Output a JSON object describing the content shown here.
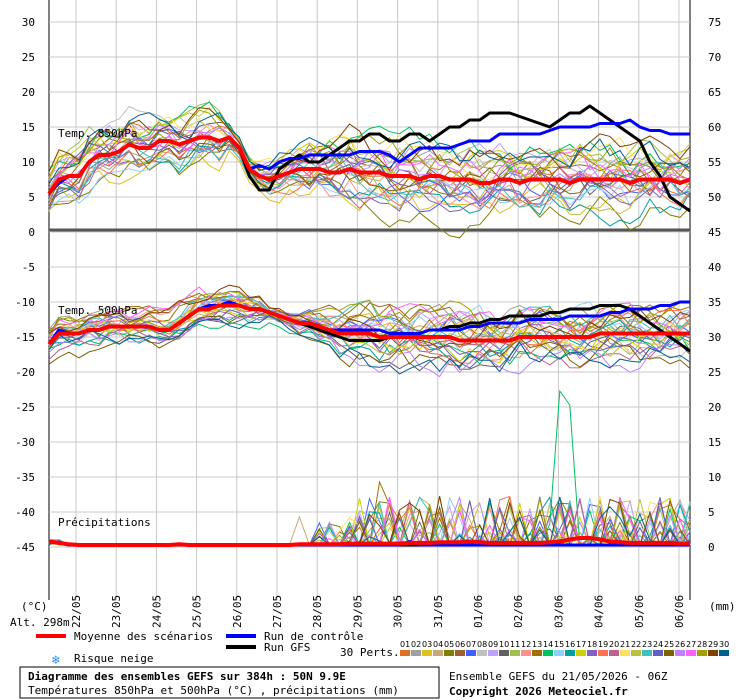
{
  "chart_data": {
    "type": "line",
    "title": "Diagramme des ensembles GEFS sur 384h : 50N 9.9E",
    "subtitle": "Températures 850hPa et 500hPa (°C) , précipitations (mm)",
    "run_info": "Ensemble GEFS du 21/05/2026 - 06Z",
    "copyright": "Copyright 2026 Meteociel.fr",
    "left_unit": "(°C)",
    "right_unit": "(mm)",
    "altitude": "Alt. 298m",
    "left_axis_ticks": [
      "30",
      "25",
      "20",
      "15",
      "10",
      "5",
      "0",
      "-5",
      "-10",
      "-15",
      "-20",
      "-25",
      "-30",
      "-35",
      "-40",
      "-45"
    ],
    "right_axis_ticks": [
      "75",
      "70",
      "65",
      "60",
      "55",
      "50",
      "45",
      "40",
      "35",
      "30",
      "25",
      "20",
      "15",
      "10",
      "5",
      "0"
    ],
    "x_tick_labels": [
      "22/05",
      "23/05",
      "24/05",
      "25/05",
      "26/05",
      "27/05",
      "28/05",
      "29/05",
      "30/05",
      "31/05",
      "01/06",
      "02/06",
      "03/06",
      "04/06",
      "05/06",
      "06/06"
    ],
    "panel_labels": {
      "t850": "Temp. 850hPa",
      "t500": "Temp. 500hPa",
      "precip": "Précipitations"
    },
    "legend": {
      "mean": "Moyenne des scénarios",
      "control": "Run de contrôle",
      "gfs": "Run GFS",
      "snow": "Risque neige",
      "perts": "30 Perts."
    },
    "perturbations": [
      "01",
      "02",
      "03",
      "04",
      "05",
      "06",
      "07",
      "08",
      "09",
      "10",
      "11",
      "12",
      "13",
      "14",
      "15",
      "16",
      "17",
      "18",
      "19",
      "20",
      "21",
      "22",
      "23",
      "24",
      "25",
      "26",
      "27",
      "28",
      "29",
      "30"
    ],
    "pert_colors": [
      "#e07020",
      "#a0a0a0",
      "#e0c020",
      "#c8a878",
      "#808000",
      "#a06030",
      "#4060ff",
      "#c0c0c0",
      "#c0a0ff",
      "#606060",
      "#a0c050",
      "#ff9090",
      "#a07000",
      "#00c060",
      "#90d0ff",
      "#00a0a0",
      "#d0d000",
      "#8060c0",
      "#ff7050",
      "#c06090",
      "#ffe060",
      "#c0c040",
      "#40c0c0",
      "#6060c0",
      "#806000",
      "#c080ff",
      "#ff60ff",
      "#a0a000",
      "#804000",
      "#006090"
    ],
    "colors": {
      "mean": "#ff0000",
      "control": "#0000ff",
      "gfs": "#000000"
    },
    "x_start_day": "21/05",
    "step_hours": 6,
    "series": [
      {
        "name": "Moyenne des scénarios",
        "panel": "t850",
        "values": [
          5.5,
          7.5,
          8,
          8,
          10,
          11,
          11,
          11.5,
          12.5,
          12,
          12,
          13,
          13,
          12.5,
          13,
          13.5,
          13.5,
          13,
          13.5,
          12,
          9,
          8,
          7.5,
          8,
          8.5,
          9,
          9,
          9,
          8.5,
          8.5,
          9,
          8.5,
          8.5,
          8.5,
          8,
          8,
          8,
          7.5,
          8,
          8,
          7.5,
          7.5,
          7.5,
          7,
          7,
          7.5,
          7.5,
          7,
          7.5,
          7.5,
          7.5,
          7.5,
          7,
          7.5,
          7.5,
          7.5,
          7.5,
          7.5,
          7,
          7.5,
          7.5,
          7.5,
          7.5,
          7,
          7.5
        ]
      },
      {
        "name": "Run de contrôle",
        "panel": "t850",
        "values": [
          5.5,
          7,
          8,
          8,
          10,
          11,
          11,
          11.5,
          12.5,
          12,
          12,
          13,
          13,
          12.5,
          13,
          13.5,
          13.5,
          13,
          13.5,
          12,
          9,
          9.5,
          9,
          10,
          10.5,
          10.5,
          11,
          11,
          11,
          11,
          11,
          11.5,
          11.5,
          11.5,
          11,
          10,
          11,
          12,
          12,
          12,
          12,
          12.5,
          13,
          13,
          13,
          14,
          14,
          14,
          14,
          14,
          14.5,
          15,
          15,
          15,
          15,
          15.5,
          15.5,
          15.5,
          16,
          15,
          14.5,
          14.5,
          14,
          14,
          14
        ]
      },
      {
        "name": "Run GFS",
        "panel": "t850",
        "values": [
          5.5,
          7,
          8,
          8,
          10,
          11,
          11,
          11.5,
          12.5,
          12,
          12,
          13,
          13,
          12.5,
          13,
          13.5,
          13.5,
          13,
          13.5,
          12,
          8,
          6,
          6,
          9,
          10,
          11,
          10,
          10,
          11,
          12,
          13,
          13,
          14,
          14,
          13,
          13,
          14,
          14,
          13,
          14,
          15,
          15,
          16,
          16,
          17,
          17,
          17,
          16.5,
          16,
          15.5,
          15,
          16,
          17,
          17,
          18,
          17,
          16,
          15,
          14,
          13,
          10,
          8,
          5,
          4,
          3
        ]
      },
      {
        "name": "Moyenne des scénarios",
        "panel": "t500",
        "values": [
          -16,
          -14.5,
          -14.5,
          -14.5,
          -14,
          -14,
          -13.5,
          -13.5,
          -13.5,
          -13.5,
          -13.5,
          -14,
          -14,
          -13,
          -12,
          -11,
          -11,
          -10.5,
          -10.5,
          -10.5,
          -11,
          -11,
          -11.5,
          -12,
          -12.5,
          -13,
          -13,
          -13.5,
          -14,
          -14.5,
          -14.5,
          -14.5,
          -14.5,
          -15,
          -15,
          -15,
          -15,
          -15,
          -15,
          -15,
          -15,
          -15.5,
          -15.5,
          -15.5,
          -15.5,
          -15.5,
          -15.5,
          -15,
          -15,
          -15,
          -15,
          -15,
          -15,
          -15,
          -15,
          -14.5,
          -14.5,
          -14.5,
          -14.5,
          -14.5,
          -14.5,
          -14.5,
          -14.5,
          -14.5,
          -14.5
        ]
      },
      {
        "name": "Run de contrôle",
        "panel": "t500",
        "values": [
          -16,
          -14,
          -14.5,
          -14.5,
          -14,
          -14,
          -13.5,
          -13.5,
          -13.5,
          -13.5,
          -13.5,
          -14,
          -14,
          -13,
          -12,
          -11,
          -10.5,
          -10.5,
          -10,
          -10.5,
          -11,
          -11,
          -11.5,
          -12,
          -12.5,
          -13,
          -13,
          -13.5,
          -14,
          -14,
          -14,
          -14,
          -14,
          -14,
          -14.5,
          -14.5,
          -14.5,
          -14.5,
          -14,
          -14,
          -14,
          -14,
          -13.5,
          -13.5,
          -13,
          -13,
          -13,
          -13,
          -12.5,
          -12.5,
          -12.5,
          -12.5,
          -12,
          -12,
          -12,
          -12,
          -11.5,
          -11.5,
          -11,
          -11,
          -11,
          -10.5,
          -10.5,
          -10,
          -10
        ]
      },
      {
        "name": "Run GFS",
        "panel": "t500",
        "values": [
          -16,
          -14,
          -14.5,
          -14.5,
          -14,
          -14,
          -13.5,
          -13.5,
          -13.5,
          -13.5,
          -13.5,
          -14,
          -14,
          -13,
          -12,
          -11,
          -10.5,
          -10.5,
          -10,
          -10.5,
          -11,
          -11,
          -11.5,
          -12,
          -12.5,
          -13,
          -13.5,
          -14,
          -14.5,
          -15,
          -15.5,
          -15.5,
          -15.5,
          -15.5,
          -15,
          -15,
          -14.5,
          -14.5,
          -14,
          -14,
          -13.5,
          -13.5,
          -13,
          -13,
          -12.5,
          -12.5,
          -12,
          -12,
          -12,
          -12,
          -11.5,
          -11.5,
          -11,
          -11,
          -11,
          -10.5,
          -10.5,
          -10.5,
          -11,
          -12,
          -13,
          -14,
          -15,
          -16,
          -17
        ]
      },
      {
        "name": "Moyenne des scénarios",
        "panel": "precip",
        "values": [
          0.5,
          0.3,
          0.1,
          0,
          0,
          0,
          0,
          0,
          0,
          0,
          0,
          0,
          0,
          0.1,
          0,
          0,
          0,
          0,
          0,
          0,
          0,
          0,
          0,
          0,
          0,
          0.1,
          0.1,
          0.1,
          0.1,
          0.1,
          0.2,
          0.2,
          0.2,
          0.2,
          0.2,
          0.2,
          0.3,
          0.3,
          0.3,
          0.4,
          0.4,
          0.4,
          0.5,
          0.4,
          0.3,
          0.3,
          0.3,
          0.3,
          0.3,
          0.3,
          0.4,
          0.5,
          0.8,
          1,
          1,
          0.8,
          0.5,
          0.4,
          0.3,
          0.3,
          0.3,
          0.3,
          0.3,
          0.2,
          0.2
        ]
      },
      {
        "name": "Run de contrôle",
        "panel": "precip",
        "values": [
          0.5,
          0.3,
          0,
          0,
          0,
          0,
          0,
          0,
          0,
          0,
          0,
          0,
          0,
          0,
          0,
          0,
          0,
          0,
          0,
          0,
          0,
          0,
          0,
          0,
          0,
          0,
          0,
          0,
          0,
          0,
          0,
          0,
          0,
          0,
          0,
          0,
          0.5,
          0,
          0,
          0,
          0,
          0,
          0,
          0,
          0,
          0,
          0,
          0,
          0,
          0,
          0,
          0,
          0,
          0,
          0,
          0,
          0,
          0,
          0,
          0,
          0,
          0,
          0,
          0,
          0
        ]
      },
      {
        "name": "Run GFS",
        "panel": "precip",
        "values": [
          0.5,
          0.3,
          0,
          0,
          0,
          0,
          0,
          0,
          0,
          0,
          0,
          0,
          0,
          0,
          0,
          0,
          0,
          0,
          0,
          0,
          0,
          0,
          0,
          0,
          0,
          0,
          0,
          0,
          0,
          0,
          0,
          0,
          0,
          0,
          0,
          0,
          0,
          0,
          0,
          0,
          0,
          0,
          0,
          0,
          0,
          0,
          0,
          0,
          0,
          0,
          0,
          0,
          0,
          0,
          0,
          0,
          0,
          0,
          0,
          0,
          0,
          0,
          0,
          0,
          0
        ]
      }
    ],
    "notable_peaks": {
      "precip_max": 22,
      "precip_max_day": "03/06"
    },
    "ylim_temp_left": [
      -50,
      30
    ],
    "ylim_precip_right": [
      0,
      75
    ]
  }
}
